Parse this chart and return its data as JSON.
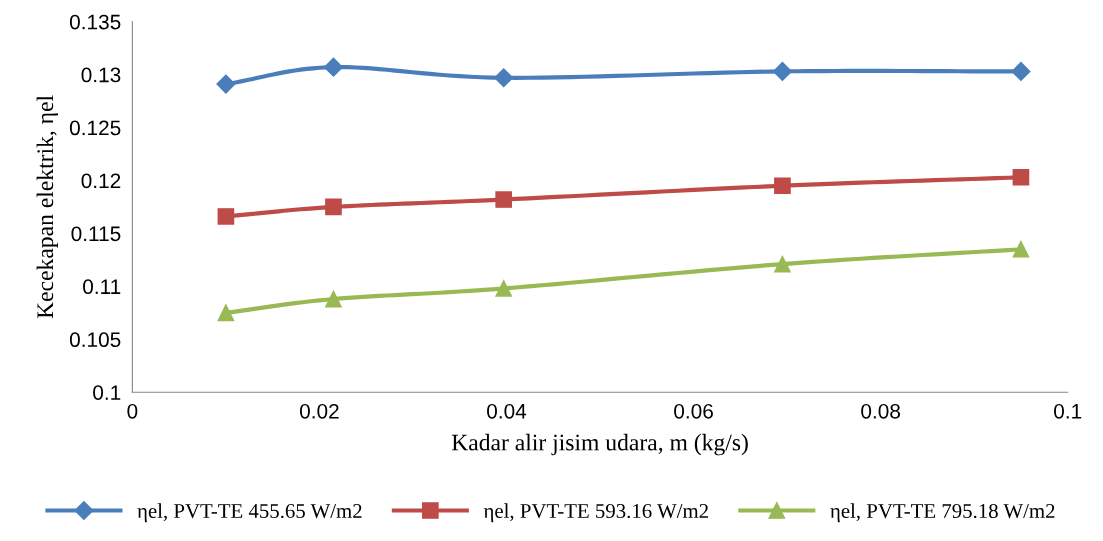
{
  "chart_data": {
    "type": "line",
    "xlabel": "Kadar alir jisim udara, m (kg/s)",
    "ylabel": "Kecekapan elektrik, ηel",
    "x": [
      0.01,
      0.0215,
      0.0397,
      0.0695,
      0.095
    ],
    "series": [
      {
        "name": "ηel, PVT-TE 455.65 W/m2",
        "color": "#4a7ebb",
        "values": [
          0.1291,
          0.1307,
          0.1297,
          0.1303,
          0.1303
        ],
        "marker": "diamond"
      },
      {
        "name": "ηel, PVT-TE 593.16 W/m2",
        "color": "#be4b48",
        "values": [
          0.1166,
          0.1175,
          0.1182,
          0.1195,
          0.1203
        ],
        "marker": "square"
      },
      {
        "name": "ηel, PVT-TE 795.18 W/m2",
        "color": "#98b954",
        "values": [
          0.1075,
          0.1088,
          0.1098,
          0.1121,
          0.1135
        ],
        "marker": "triangle"
      }
    ],
    "xlim": [
      0,
      0.1
    ],
    "xticks": [
      0,
      0.02,
      0.04,
      0.06,
      0.08,
      0.1
    ],
    "ylim": [
      0.1,
      0.135
    ],
    "yticks": [
      0.1,
      0.105,
      0.11,
      0.115,
      0.12,
      0.125,
      0.13,
      0.135
    ],
    "grid": false,
    "legend": "bottom",
    "line_style": "solid"
  }
}
